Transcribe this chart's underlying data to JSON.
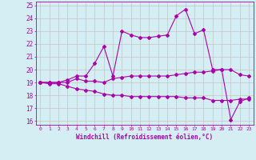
{
  "title": "",
  "xlabel": "Windchill (Refroidissement éolien,°C)",
  "ylabel": "",
  "background_color": "#d4eef4",
  "line_color": "#aa00aa",
  "grid_color": "#bbbbbb",
  "xmin": -0.5,
  "xmax": 23.5,
  "ymin": 15.7,
  "ymax": 25.3,
  "yticks": [
    16,
    17,
    18,
    19,
    20,
    21,
    22,
    23,
    24,
    25
  ],
  "xticks": [
    0,
    1,
    2,
    3,
    4,
    5,
    6,
    7,
    8,
    9,
    10,
    11,
    12,
    13,
    14,
    15,
    16,
    17,
    18,
    19,
    20,
    21,
    22,
    23
  ],
  "line1_x": [
    0,
    1,
    2,
    3,
    4,
    5,
    6,
    7,
    8,
    9,
    10,
    11,
    12,
    13,
    14,
    15,
    16,
    17,
    18,
    19,
    20,
    21,
    22,
    23
  ],
  "line1_y": [
    19.0,
    19.0,
    19.0,
    19.0,
    19.3,
    19.1,
    19.1,
    19.0,
    19.3,
    19.4,
    19.5,
    19.5,
    19.5,
    19.5,
    19.5,
    19.6,
    19.7,
    19.8,
    19.8,
    19.9,
    20.0,
    20.0,
    19.6,
    19.5
  ],
  "line2_x": [
    0,
    1,
    2,
    3,
    4,
    5,
    6,
    7,
    8,
    9,
    10,
    11,
    12,
    13,
    14,
    15,
    16,
    17,
    18,
    19,
    20,
    21,
    22,
    23
  ],
  "line2_y": [
    19.0,
    18.9,
    18.9,
    18.7,
    18.5,
    18.4,
    18.3,
    18.1,
    18.0,
    18.0,
    17.9,
    17.9,
    17.9,
    17.9,
    17.9,
    17.9,
    17.8,
    17.8,
    17.8,
    17.6,
    17.6,
    17.6,
    17.7,
    17.7
  ],
  "line3_x": [
    0,
    1,
    2,
    3,
    4,
    5,
    6,
    7,
    8,
    9,
    10,
    11,
    12,
    13,
    14,
    15,
    16,
    17,
    18,
    19,
    20,
    21,
    22,
    23
  ],
  "line3_y": [
    19.0,
    19.0,
    19.0,
    19.2,
    19.5,
    19.5,
    20.5,
    21.8,
    19.5,
    23.0,
    22.7,
    22.5,
    22.5,
    22.6,
    22.7,
    24.2,
    24.7,
    22.8,
    23.1,
    20.0,
    20.0,
    16.1,
    17.5,
    17.8
  ],
  "marker": "D",
  "marker_size": 2,
  "linewidth": 0.8
}
